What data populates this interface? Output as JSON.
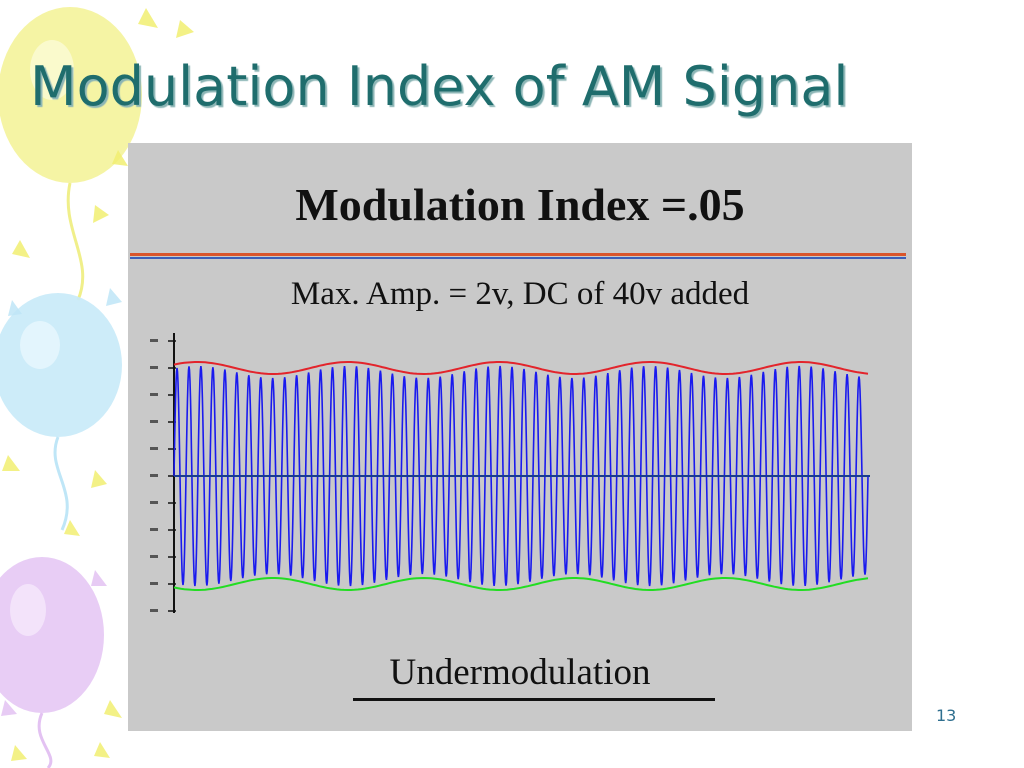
{
  "slide": {
    "title": "Modulation Index of AM Signal",
    "page_number": "13"
  },
  "figure": {
    "title": "Modulation Index =.05",
    "subtitle": "Max. Amp. = 2v,  DC of 40v added",
    "caption": "Undermodulation"
  },
  "colors": {
    "title_text": "#1f6d6d",
    "panel_background": "#c9c9c9",
    "carrier": "#1a1aee",
    "upper_envelope": "#e3242b",
    "lower_envelope": "#22dd22",
    "zero_axis": "#1a3c8f",
    "balloon_yellow": "#f2f07a",
    "balloon_blue": "#bfe6f7",
    "balloon_purple": "#e3c2f2"
  }
}
